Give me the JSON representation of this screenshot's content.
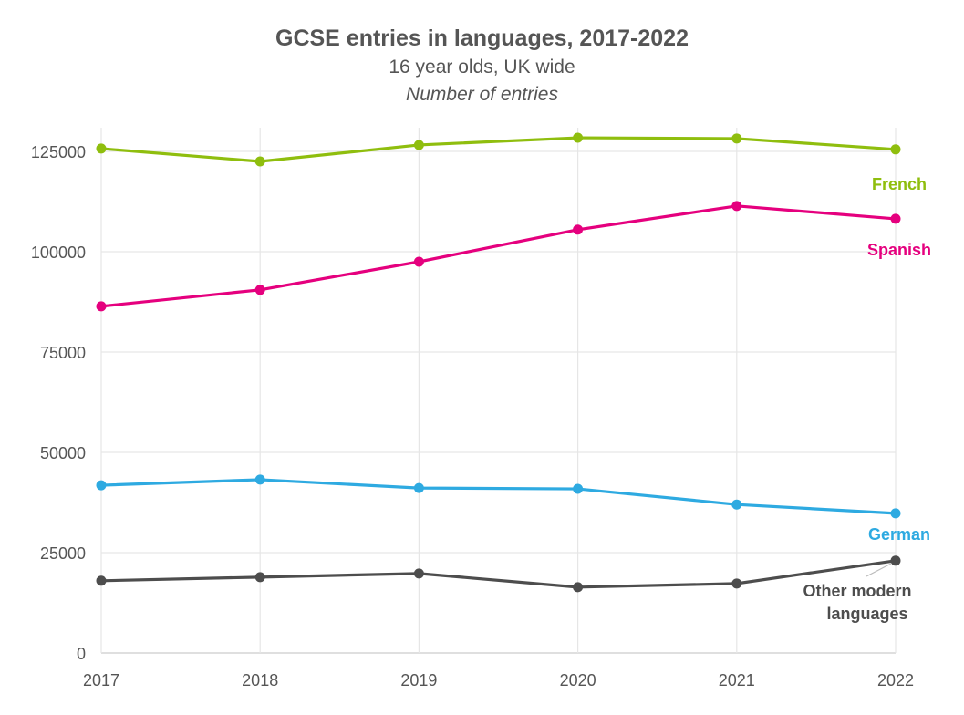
{
  "chart_data": {
    "type": "line",
    "title": "GCSE entries in languages, 2017-2022",
    "subtitle": "16 year olds, UK wide",
    "ylabel": "Number of entries",
    "x": [
      "2017",
      "2018",
      "2019",
      "2020",
      "2021",
      "2022"
    ],
    "ylim": [
      0,
      130000
    ],
    "yticks": [
      0,
      25000,
      50000,
      75000,
      100000,
      125000
    ],
    "grid": true,
    "series": [
      {
        "name": "French",
        "color": "#8fbe0e",
        "values": [
          125700,
          122500,
          126600,
          128400,
          128200,
          125500
        ]
      },
      {
        "name": "Spanish",
        "color": "#e5007e",
        "values": [
          86400,
          90500,
          97500,
          105500,
          111400,
          108200
        ]
      },
      {
        "name": "German",
        "color": "#2eaae1",
        "values": [
          41800,
          43200,
          41100,
          40900,
          37000,
          34800
        ]
      },
      {
        "name": "Other modern languages",
        "color": "#4d4d4d",
        "values": [
          18000,
          18900,
          19800,
          16400,
          17300,
          23000
        ]
      }
    ]
  }
}
